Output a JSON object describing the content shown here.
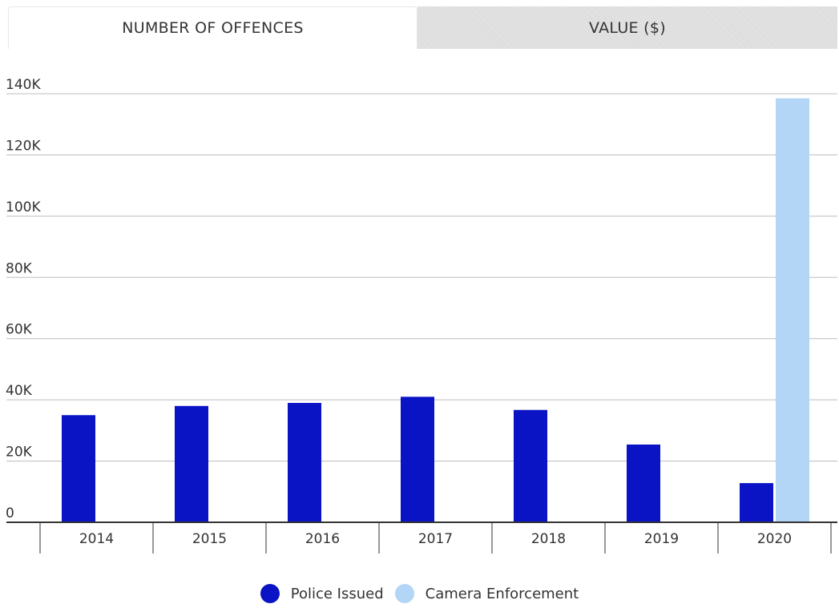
{
  "tabs": [
    {
      "label": "NUMBER OF OFFENCES",
      "active": true
    },
    {
      "label": "VALUE ($)",
      "active": false
    }
  ],
  "colors": {
    "police": "#0b14c4",
    "camera": "#b3d5f6",
    "grid": "#bdbdbd",
    "axis": "#333333"
  },
  "chart_data": {
    "type": "bar",
    "categories": [
      "2014",
      "2015",
      "2016",
      "2017",
      "2018",
      "2019",
      "2020"
    ],
    "series": [
      {
        "name": "Police Issued",
        "values": [
          35000,
          38000,
          39000,
          41000,
          36700,
          25400,
          12800
        ]
      },
      {
        "name": "Camera Enforcement",
        "values": [
          0,
          0,
          0,
          0,
          0,
          0,
          138500
        ]
      }
    ],
    "ylim": [
      0,
      140000
    ],
    "yticks": [
      0,
      20000,
      40000,
      60000,
      80000,
      100000,
      120000,
      140000
    ],
    "ytick_labels": [
      "0",
      "20K",
      "40K",
      "60K",
      "80K",
      "100K",
      "120K",
      "140K"
    ],
    "grid": true,
    "legend_position": "bottom-center"
  }
}
